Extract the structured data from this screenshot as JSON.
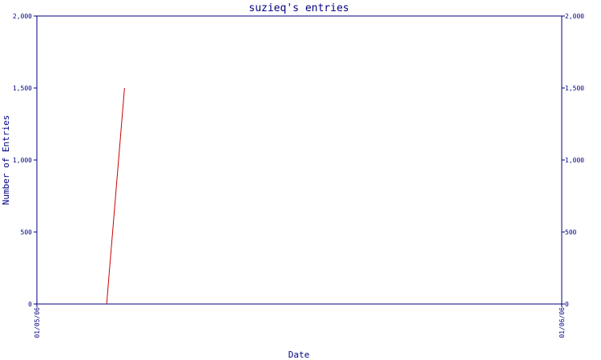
{
  "chart_data": {
    "type": "line",
    "title": "suzieq's entries",
    "xlabel": "Date",
    "ylabel": "Number of Entries",
    "x_tick_labels": [
      "01/05/06",
      "01/06/06"
    ],
    "y_tick_labels": [
      "0",
      "500",
      "1,000",
      "1,500",
      "2,000"
    ],
    "y_ticks": [
      0,
      500,
      1000,
      1500,
      2000
    ],
    "ylim": [
      0,
      2000
    ],
    "x_range_fraction": [
      0,
      1
    ],
    "grid": false,
    "right_axis": true,
    "series": [
      {
        "points": [
          {
            "x_fraction": 0.133,
            "y": 0
          },
          {
            "x_fraction": 0.167,
            "y": 1500
          }
        ]
      }
    ],
    "colors": {
      "axis": "#000080",
      "text": "#000080",
      "series": "#cc0000"
    }
  }
}
